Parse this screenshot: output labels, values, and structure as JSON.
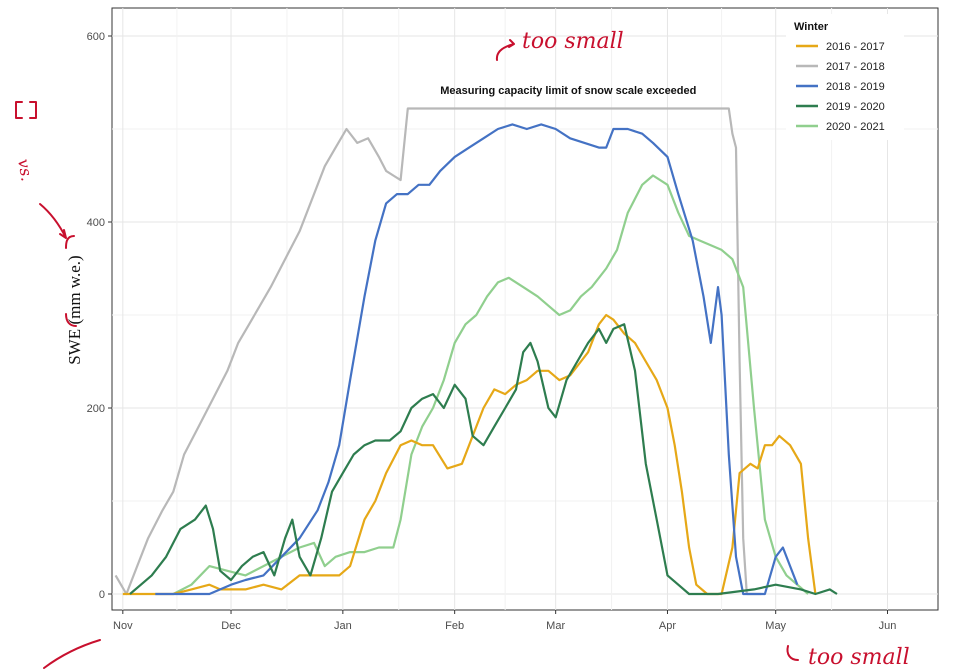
{
  "chart_data": {
    "type": "line",
    "title": "",
    "xlabel": "",
    "ylabel": "SWE (mm w.e.)",
    "ylim": [
      0,
      620
    ],
    "yticks": [
      0,
      200,
      400,
      600
    ],
    "xlim": [
      "10-29",
      "06-15"
    ],
    "xticks": [
      {
        "label": "Nov",
        "date": "11-01"
      },
      {
        "label": "Dec",
        "date": "12-01"
      },
      {
        "label": "Jan",
        "date": "01-01"
      },
      {
        "label": "Feb",
        "date": "02-01"
      },
      {
        "label": "Mar",
        "date": "03-01"
      },
      {
        "label": "Apr",
        "date": "04-01"
      },
      {
        "label": "May",
        "date": "05-01"
      },
      {
        "label": "Jun",
        "date": "06-01"
      }
    ],
    "grid": true,
    "legend_title": "Winter",
    "legend_position": "top-right",
    "annotation": {
      "text": "Measuring capacity limit of snow scale exceeded",
      "value": 522,
      "x_start": "01-19",
      "x_end": "04-18"
    },
    "series": [
      {
        "name": "2016 - 2017",
        "color": "#e6a817",
        "points": [
          [
            "11-01",
            0
          ],
          [
            "11-15",
            0
          ],
          [
            "11-20",
            5
          ],
          [
            "11-25",
            10
          ],
          [
            "11-28",
            5
          ],
          [
            "12-05",
            5
          ],
          [
            "12-10",
            10
          ],
          [
            "12-15",
            5
          ],
          [
            "12-20",
            20
          ],
          [
            "12-25",
            20
          ],
          [
            "12-31",
            20
          ],
          [
            "01-03",
            30
          ],
          [
            "01-07",
            80
          ],
          [
            "01-10",
            100
          ],
          [
            "01-13",
            130
          ],
          [
            "01-17",
            160
          ],
          [
            "01-20",
            165
          ],
          [
            "01-23",
            160
          ],
          [
            "01-26",
            160
          ],
          [
            "01-30",
            135
          ],
          [
            "02-03",
            140
          ],
          [
            "02-06",
            170
          ],
          [
            "02-09",
            200
          ],
          [
            "02-12",
            220
          ],
          [
            "02-15",
            215
          ],
          [
            "02-18",
            225
          ],
          [
            "02-21",
            230
          ],
          [
            "02-24",
            240
          ],
          [
            "02-27",
            240
          ],
          [
            "03-02",
            230
          ],
          [
            "03-05",
            235
          ],
          [
            "03-08",
            250
          ],
          [
            "03-10",
            260
          ],
          [
            "03-13",
            290
          ],
          [
            "03-15",
            300
          ],
          [
            "03-17",
            295
          ],
          [
            "03-20",
            280
          ],
          [
            "03-23",
            270
          ],
          [
            "03-26",
            250
          ],
          [
            "03-29",
            230
          ],
          [
            "04-01",
            200
          ],
          [
            "04-03",
            160
          ],
          [
            "04-05",
            110
          ],
          [
            "04-07",
            50
          ],
          [
            "04-09",
            10
          ],
          [
            "04-12",
            0
          ],
          [
            "04-16",
            0
          ],
          [
            "04-19",
            50
          ],
          [
            "04-21",
            130
          ],
          [
            "04-24",
            140
          ],
          [
            "04-26",
            135
          ],
          [
            "04-28",
            160
          ],
          [
            "04-30",
            160
          ],
          [
            "05-02",
            170
          ],
          [
            "05-05",
            160
          ],
          [
            "05-08",
            140
          ],
          [
            "05-10",
            60
          ],
          [
            "05-12",
            0
          ]
        ]
      },
      {
        "name": "2017 - 2018",
        "color": "#b8b8b8",
        "points": [
          [
            "10-30",
            20
          ],
          [
            "11-02",
            0
          ],
          [
            "11-05",
            30
          ],
          [
            "11-08",
            60
          ],
          [
            "11-12",
            90
          ],
          [
            "11-15",
            110
          ],
          [
            "11-18",
            150
          ],
          [
            "11-22",
            180
          ],
          [
            "11-26",
            210
          ],
          [
            "11-30",
            240
          ],
          [
            "12-03",
            270
          ],
          [
            "12-06",
            290
          ],
          [
            "12-09",
            310
          ],
          [
            "12-12",
            330
          ],
          [
            "12-16",
            360
          ],
          [
            "12-20",
            390
          ],
          [
            "12-24",
            430
          ],
          [
            "12-27",
            460
          ],
          [
            "12-30",
            480
          ],
          [
            "01-02",
            500
          ],
          [
            "01-05",
            485
          ],
          [
            "01-08",
            490
          ],
          [
            "01-11",
            470
          ],
          [
            "01-13",
            455
          ],
          [
            "01-15",
            450
          ],
          [
            "01-17",
            445
          ],
          [
            "01-19",
            522
          ],
          [
            "04-18",
            522
          ],
          [
            "04-19",
            495
          ],
          [
            "04-20",
            480
          ],
          [
            "04-21",
            250
          ],
          [
            "04-22",
            60
          ],
          [
            "04-23",
            0
          ],
          [
            "04-27",
            0
          ]
        ]
      },
      {
        "name": "2018 - 2019",
        "color": "#4472c4",
        "points": [
          [
            "11-10",
            0
          ],
          [
            "11-20",
            0
          ],
          [
            "11-25",
            0
          ],
          [
            "11-28",
            5
          ],
          [
            "12-01",
            10
          ],
          [
            "12-05",
            15
          ],
          [
            "12-10",
            20
          ],
          [
            "12-15",
            40
          ],
          [
            "12-20",
            60
          ],
          [
            "12-25",
            90
          ],
          [
            "12-28",
            120
          ],
          [
            "12-31",
            160
          ],
          [
            "01-03",
            230
          ],
          [
            "01-07",
            320
          ],
          [
            "01-10",
            380
          ],
          [
            "01-13",
            420
          ],
          [
            "01-16",
            430
          ],
          [
            "01-19",
            430
          ],
          [
            "01-22",
            440
          ],
          [
            "01-25",
            440
          ],
          [
            "01-28",
            455
          ],
          [
            "02-01",
            470
          ],
          [
            "02-05",
            480
          ],
          [
            "02-09",
            490
          ],
          [
            "02-13",
            500
          ],
          [
            "02-17",
            505
          ],
          [
            "02-21",
            500
          ],
          [
            "02-25",
            505
          ],
          [
            "03-01",
            500
          ],
          [
            "03-05",
            490
          ],
          [
            "03-09",
            485
          ],
          [
            "03-13",
            480
          ],
          [
            "03-15",
            480
          ],
          [
            "03-17",
            500
          ],
          [
            "03-21",
            500
          ],
          [
            "03-25",
            495
          ],
          [
            "03-28",
            485
          ],
          [
            "04-01",
            470
          ],
          [
            "04-04",
            430
          ],
          [
            "04-08",
            380
          ],
          [
            "04-11",
            320
          ],
          [
            "04-13",
            270
          ],
          [
            "04-15",
            330
          ],
          [
            "04-16",
            300
          ],
          [
            "04-18",
            150
          ],
          [
            "04-20",
            40
          ],
          [
            "04-22",
            0
          ],
          [
            "04-28",
            0
          ],
          [
            "05-01",
            40
          ],
          [
            "05-03",
            50
          ],
          [
            "05-05",
            30
          ],
          [
            "05-07",
            10
          ]
        ]
      },
      {
        "name": "2019 - 2020",
        "color": "#2e7d4f",
        "points": [
          [
            "11-03",
            0
          ],
          [
            "11-06",
            10
          ],
          [
            "11-09",
            20
          ],
          [
            "11-13",
            40
          ],
          [
            "11-17",
            70
          ],
          [
            "11-21",
            80
          ],
          [
            "11-24",
            95
          ],
          [
            "11-26",
            70
          ],
          [
            "11-28",
            25
          ],
          [
            "12-01",
            15
          ],
          [
            "12-04",
            30
          ],
          [
            "12-07",
            40
          ],
          [
            "12-10",
            45
          ],
          [
            "12-13",
            20
          ],
          [
            "12-16",
            60
          ],
          [
            "12-18",
            80
          ],
          [
            "12-20",
            40
          ],
          [
            "12-23",
            20
          ],
          [
            "12-26",
            60
          ],
          [
            "12-29",
            110
          ],
          [
            "01-01",
            130
          ],
          [
            "01-04",
            150
          ],
          [
            "01-07",
            160
          ],
          [
            "01-10",
            165
          ],
          [
            "01-14",
            165
          ],
          [
            "01-17",
            175
          ],
          [
            "01-20",
            200
          ],
          [
            "01-23",
            210
          ],
          [
            "01-26",
            215
          ],
          [
            "01-29",
            200
          ],
          [
            "02-01",
            225
          ],
          [
            "02-04",
            210
          ],
          [
            "02-06",
            170
          ],
          [
            "02-09",
            160
          ],
          [
            "02-12",
            180
          ],
          [
            "02-15",
            200
          ],
          [
            "02-18",
            220
          ],
          [
            "02-20",
            260
          ],
          [
            "02-22",
            270
          ],
          [
            "02-24",
            250
          ],
          [
            "02-27",
            200
          ],
          [
            "03-01",
            190
          ],
          [
            "03-04",
            230
          ],
          [
            "03-07",
            250
          ],
          [
            "03-10",
            270
          ],
          [
            "03-13",
            285
          ],
          [
            "03-15",
            270
          ],
          [
            "03-17",
            285
          ],
          [
            "03-20",
            290
          ],
          [
            "03-23",
            240
          ],
          [
            "03-26",
            140
          ],
          [
            "03-29",
            80
          ],
          [
            "04-01",
            20
          ],
          [
            "04-04",
            10
          ],
          [
            "04-07",
            0
          ],
          [
            "04-15",
            0
          ],
          [
            "04-25",
            5
          ],
          [
            "05-01",
            10
          ],
          [
            "05-08",
            5
          ],
          [
            "05-12",
            0
          ],
          [
            "05-16",
            5
          ],
          [
            "05-18",
            0
          ]
        ]
      },
      {
        "name": "2020 - 2021",
        "color": "#90cf8e",
        "points": [
          [
            "11-15",
            0
          ],
          [
            "11-20",
            10
          ],
          [
            "11-25",
            30
          ],
          [
            "11-30",
            25
          ],
          [
            "12-05",
            20
          ],
          [
            "12-10",
            30
          ],
          [
            "12-15",
            40
          ],
          [
            "12-20",
            50
          ],
          [
            "12-24",
            55
          ],
          [
            "12-27",
            30
          ],
          [
            "12-30",
            40
          ],
          [
            "01-03",
            45
          ],
          [
            "01-07",
            45
          ],
          [
            "01-11",
            50
          ],
          [
            "01-15",
            50
          ],
          [
            "01-17",
            80
          ],
          [
            "01-20",
            150
          ],
          [
            "01-23",
            180
          ],
          [
            "01-26",
            200
          ],
          [
            "01-29",
            230
          ],
          [
            "02-01",
            270
          ],
          [
            "02-04",
            290
          ],
          [
            "02-07",
            300
          ],
          [
            "02-10",
            320
          ],
          [
            "02-13",
            335
          ],
          [
            "02-16",
            340
          ],
          [
            "02-20",
            330
          ],
          [
            "02-24",
            320
          ],
          [
            "02-27",
            310
          ],
          [
            "03-02",
            300
          ],
          [
            "03-05",
            305
          ],
          [
            "03-08",
            320
          ],
          [
            "03-11",
            330
          ],
          [
            "03-15",
            350
          ],
          [
            "03-18",
            370
          ],
          [
            "03-21",
            410
          ],
          [
            "03-25",
            440
          ],
          [
            "03-28",
            450
          ],
          [
            "04-01",
            440
          ],
          [
            "04-04",
            410
          ],
          [
            "04-07",
            385
          ],
          [
            "04-10",
            380
          ],
          [
            "04-13",
            375
          ],
          [
            "04-16",
            370
          ],
          [
            "04-19",
            360
          ],
          [
            "04-22",
            330
          ],
          [
            "04-25",
            200
          ],
          [
            "04-28",
            80
          ],
          [
            "05-01",
            40
          ],
          [
            "05-04",
            20
          ],
          [
            "05-07",
            10
          ],
          [
            "05-10",
            0
          ]
        ]
      }
    ]
  },
  "handwritten": {
    "note_top": "too small",
    "note_bottom": "too small",
    "note_left": "vs."
  }
}
